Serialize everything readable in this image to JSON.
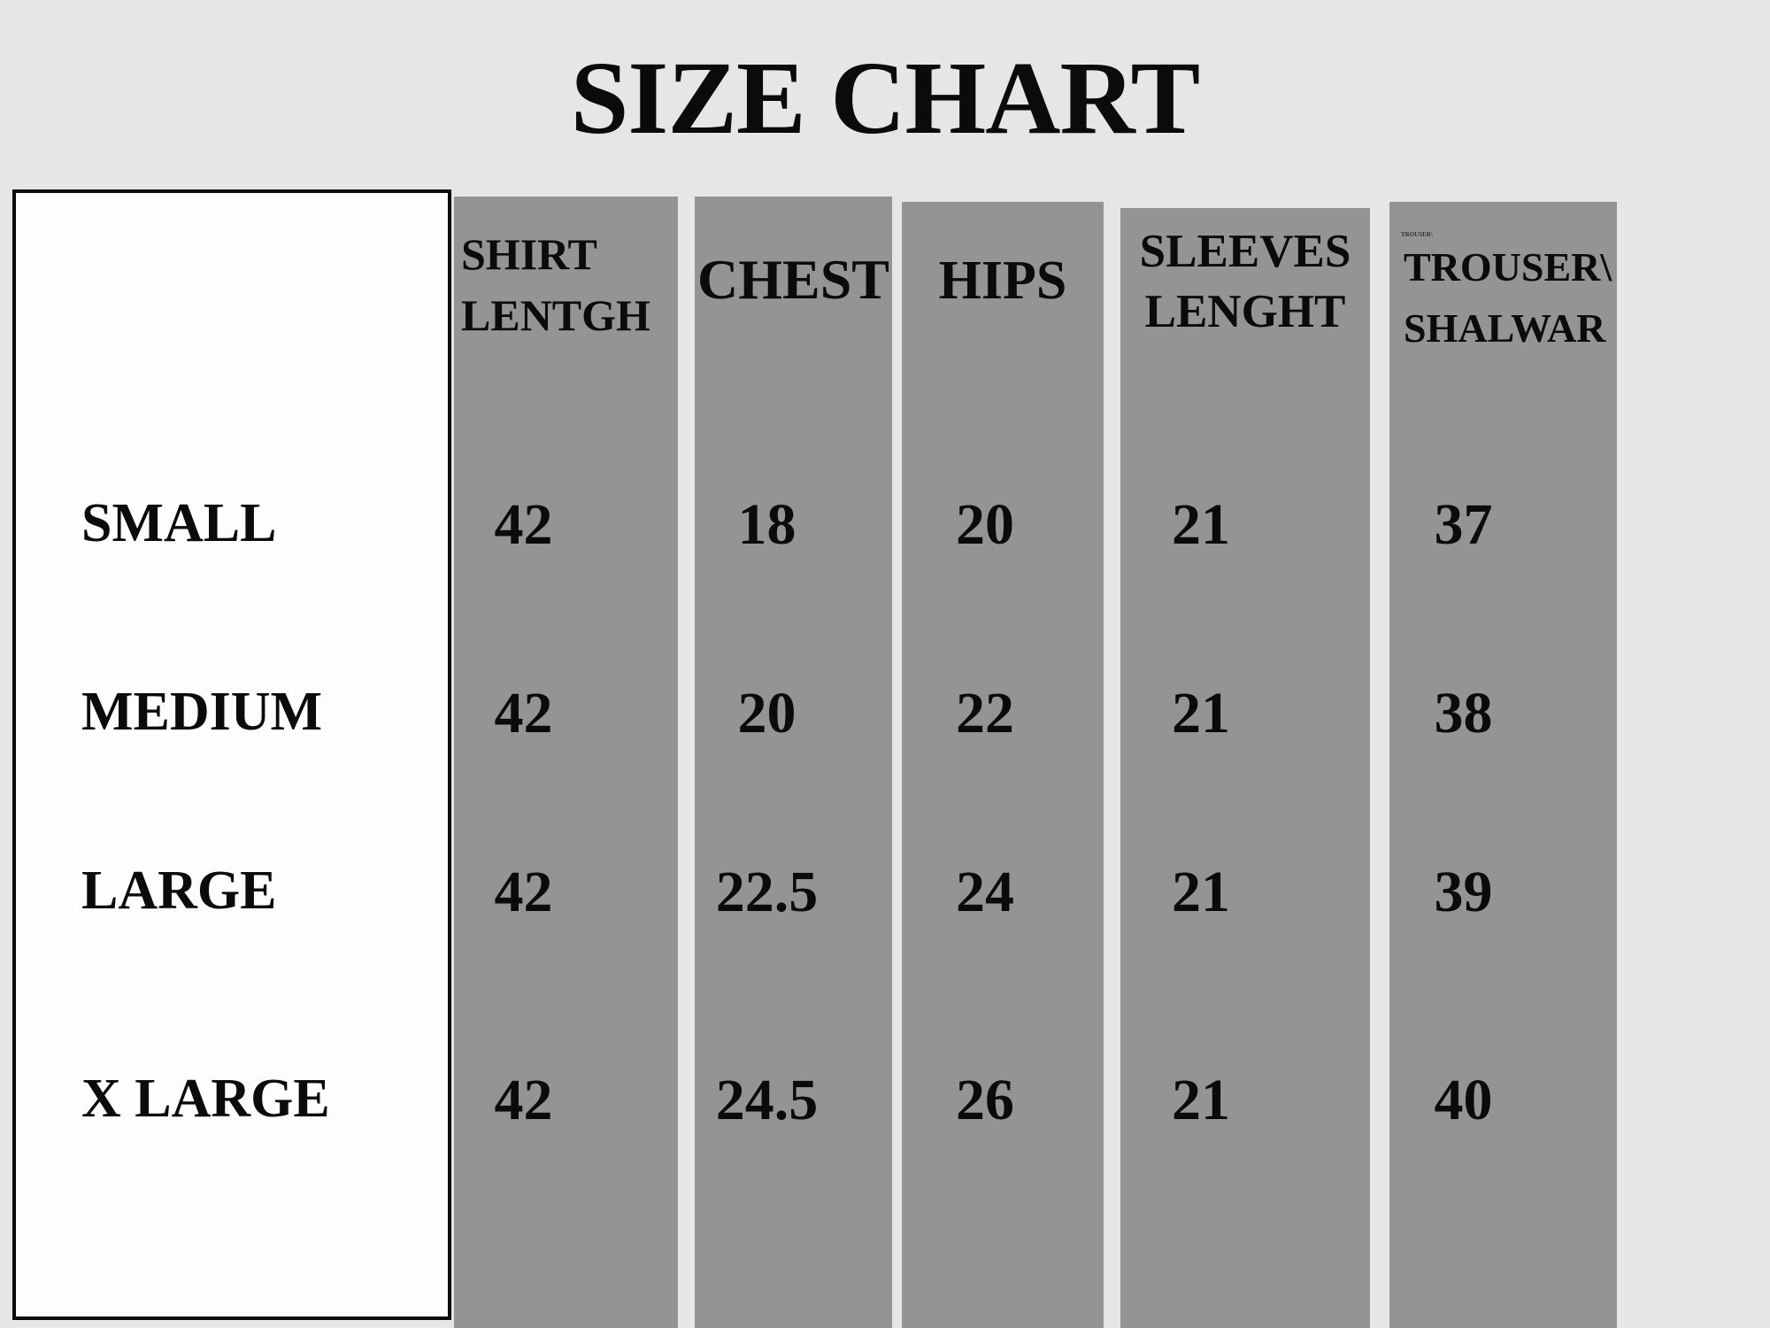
{
  "title": "SIZE CHART",
  "colors": {
    "background": "#e7e6e6",
    "column_gray": "#959495",
    "panel_white": "#fdfdfd",
    "text_black": "#0b0b0b"
  },
  "table": {
    "columns": [
      {
        "id": "shirt-length",
        "line1": "SHIRT",
        "line2": "LENTGH"
      },
      {
        "id": "chest",
        "line1": "CHEST",
        "line2": ""
      },
      {
        "id": "hips",
        "line1": "HIPS",
        "line2": ""
      },
      {
        "id": "sleeves-length",
        "line1": "SLEEVES",
        "line2": "LENGHT"
      },
      {
        "id": "trouser-shalwar",
        "line1": "TROUSER\\",
        "line2": "SHALWAR",
        "artifact": "TROUSER\\"
      }
    ],
    "rows": [
      {
        "size": "SMALL",
        "values": [
          "42",
          "18",
          "20",
          "21",
          "37"
        ]
      },
      {
        "size": "MEDIUM",
        "values": [
          "42",
          "20",
          "22",
          "21",
          "38"
        ]
      },
      {
        "size": "LARGE",
        "values": [
          "42",
          "22.5",
          "24",
          "21",
          "39"
        ]
      },
      {
        "size": "X LARGE",
        "values": [
          "42",
          "24.5",
          "26",
          "21",
          "40"
        ]
      }
    ]
  },
  "chart_data": {
    "type": "table",
    "title": "SIZE CHART",
    "columns": [
      "SHIRT LENTGH",
      "CHEST",
      "HIPS",
      "SLEEVES LENGHT",
      "TROUSER\\SHALWAR"
    ],
    "row_labels": [
      "SMALL",
      "MEDIUM",
      "LARGE",
      "X LARGE"
    ],
    "rows": [
      [
        42,
        18,
        20,
        21,
        37
      ],
      [
        42,
        20,
        22,
        21,
        38
      ],
      [
        42,
        22.5,
        24,
        21,
        39
      ],
      [
        42,
        24.5,
        26,
        21,
        40
      ]
    ]
  }
}
